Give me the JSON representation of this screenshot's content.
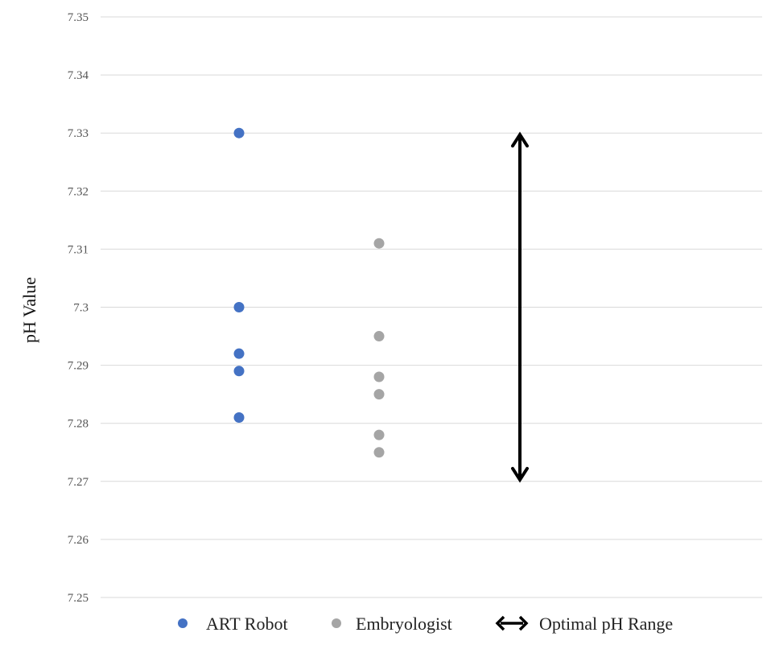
{
  "chart_data": {
    "type": "scatter",
    "title": "",
    "xlabel": "",
    "ylabel": "pH Value",
    "ylim": [
      7.25,
      7.35
    ],
    "yticks": [
      "7.25",
      "7.26",
      "7.27",
      "7.28",
      "7.29",
      "7.3",
      "7.31",
      "7.32",
      "7.33",
      "7.34",
      "7.35"
    ],
    "grid": true,
    "legend_position": "bottom",
    "series": [
      {
        "name": "ART Robot",
        "color": "#4472c4",
        "x": 1,
        "values": [
          7.33,
          7.3,
          7.292,
          7.289,
          7.281
        ]
      },
      {
        "name": "Embryologist",
        "color": "#a5a5a5",
        "x": 2,
        "values": [
          7.311,
          7.295,
          7.288,
          7.285,
          7.278,
          7.275
        ]
      }
    ],
    "range_annotation": {
      "name": "Optimal pH Range",
      "x": 3,
      "min": 7.27,
      "max": 7.33,
      "color": "#000000"
    }
  }
}
